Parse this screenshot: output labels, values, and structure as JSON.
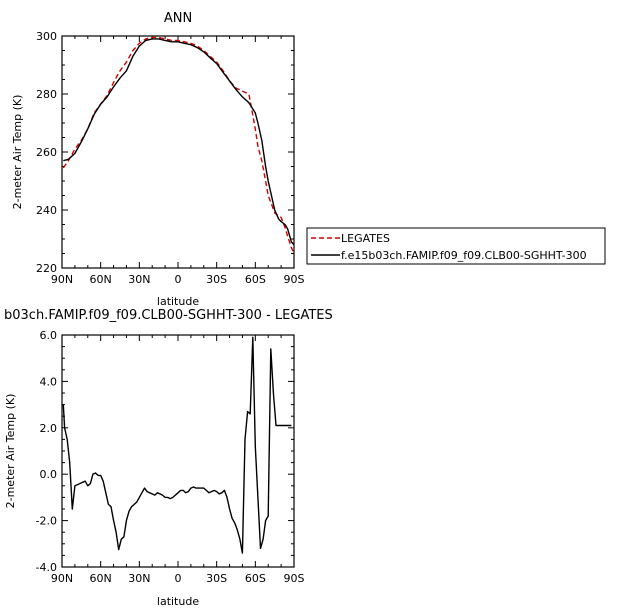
{
  "chart_data": [
    {
      "type": "line",
      "title": "ANN",
      "xlabel": "latitude",
      "ylabel": "2-meter Air Temp (K)",
      "x_ticks": [
        "90N",
        "60N",
        "30N",
        "0",
        "30S",
        "60S",
        "90S"
      ],
      "x_tick_values": [
        -90,
        -60,
        -30,
        0,
        30,
        60,
        90
      ],
      "y_ticks": [
        "220",
        "240",
        "260",
        "280",
        "300"
      ],
      "xlim": [
        -90,
        90
      ],
      "ylim": [
        220,
        300
      ],
      "legend_position": "right",
      "series": [
        {
          "name": "LEGATES",
          "color": "#d40000",
          "dash": true,
          "x": [
            -89,
            -85,
            -80,
            -75,
            -70,
            -65,
            -60,
            -55,
            -50,
            -45,
            -40,
            -35,
            -30,
            -25,
            -20,
            -15,
            -10,
            -5,
            0,
            5,
            10,
            15,
            20,
            25,
            30,
            35,
            40,
            45,
            50,
            55,
            60,
            62,
            65,
            68,
            70,
            73,
            75,
            78,
            80,
            83,
            85,
            88,
            90
          ],
          "y": [
            254.5,
            257,
            261,
            264,
            268,
            273.5,
            276.5,
            279.5,
            284,
            288,
            291,
            295,
            297.5,
            299,
            299.5,
            299.5,
            299,
            298.5,
            298.5,
            298,
            297.5,
            296.5,
            295,
            293,
            291,
            288,
            284.5,
            282,
            281,
            280,
            268,
            262,
            257,
            250,
            245,
            241.5,
            239,
            238,
            237.5,
            234,
            231,
            227,
            225
          ]
        },
        {
          "name": "f.e15b03ch.FAMIP.f09_f09.CLB00-SGHHT-300",
          "color": "#000000",
          "dash": false,
          "x": [
            -89,
            -85,
            -80,
            -75,
            -70,
            -65,
            -60,
            -55,
            -50,
            -45,
            -40,
            -35,
            -30,
            -25,
            -20,
            -15,
            -10,
            -5,
            0,
            5,
            10,
            15,
            20,
            25,
            30,
            35,
            40,
            45,
            50,
            55,
            60,
            62,
            65,
            68,
            70,
            73,
            75,
            78,
            80,
            83,
            85,
            88,
            90
          ],
          "y": [
            257,
            257.5,
            259.5,
            263.5,
            268,
            273,
            276.5,
            279,
            282.5,
            285.5,
            288,
            293,
            296.5,
            298.5,
            299,
            299,
            298.5,
            298,
            298,
            297.5,
            297,
            296,
            294.5,
            292.5,
            290.5,
            287.5,
            284.5,
            281.5,
            279,
            277,
            273.5,
            270,
            264,
            255,
            250,
            244,
            240,
            237,
            236,
            235,
            233.5,
            229,
            228
          ]
        }
      ]
    },
    {
      "type": "line",
      "title": "b03ch.FAMIP.f09_f09.CLB00-SGHHT-300 - LEGATES",
      "xlabel": "latitude",
      "ylabel": "2-meter Air Temp (K)",
      "x_ticks": [
        "90N",
        "60N",
        "30N",
        "0",
        "30S",
        "60S",
        "90S"
      ],
      "x_tick_values": [
        -90,
        -60,
        -30,
        0,
        30,
        60,
        90
      ],
      "y_ticks": [
        "6.0",
        "4.0",
        "2.0",
        "0.0",
        "-2.0",
        "-4.0"
      ],
      "y_tick_values": [
        6,
        4,
        2,
        0,
        -2,
        -4
      ],
      "xlim": [
        -90,
        90
      ],
      "ylim": [
        -4,
        6
      ],
      "series": [
        {
          "color": "#000000",
          "x": [
            -89,
            -88,
            -86,
            -84,
            -82,
            -80,
            -78,
            -76,
            -74,
            -72,
            -70,
            -68,
            -66,
            -64,
            -62,
            -60,
            -58,
            -56,
            -54,
            -52,
            -50,
            -48,
            -46,
            -44,
            -42,
            -40,
            -38,
            -36,
            -34,
            -32,
            -30,
            -28,
            -26,
            -24,
            -22,
            -20,
            -18,
            -16,
            -14,
            -12,
            -10,
            -8,
            -6,
            -4,
            -2,
            0,
            2,
            4,
            6,
            8,
            10,
            12,
            14,
            16,
            18,
            20,
            22,
            24,
            26,
            28,
            30,
            32,
            34,
            36,
            38,
            40,
            42,
            44,
            46,
            48,
            50,
            52,
            54,
            56,
            58,
            60,
            62,
            64,
            66,
            68,
            70,
            72,
            74,
            76,
            78,
            80,
            82,
            84,
            86,
            88
          ],
          "y": [
            3.0,
            2.0,
            1.5,
            0.5,
            -1.5,
            -0.5,
            -0.45,
            -0.4,
            -0.35,
            -0.3,
            -0.5,
            -0.4,
            0.0,
            0.05,
            -0.05,
            -0.05,
            -0.3,
            -0.8,
            -1.3,
            -1.4,
            -2.0,
            -2.5,
            -3.25,
            -2.8,
            -2.7,
            -2.0,
            -1.6,
            -1.4,
            -1.3,
            -1.2,
            -1.0,
            -0.8,
            -0.6,
            -0.75,
            -0.8,
            -0.85,
            -0.9,
            -0.8,
            -0.85,
            -0.9,
            -1.0,
            -1.0,
            -1.05,
            -1.0,
            -0.9,
            -0.8,
            -0.7,
            -0.7,
            -0.8,
            -0.75,
            -0.6,
            -0.55,
            -0.6,
            -0.6,
            -0.6,
            -0.6,
            -0.7,
            -0.8,
            -0.75,
            -0.7,
            -0.75,
            -0.85,
            -0.8,
            -0.7,
            -1.0,
            -1.5,
            -1.9,
            -2.1,
            -2.4,
            -2.8,
            -3.4,
            1.5,
            2.7,
            2.6,
            5.9,
            1.2,
            -1.0,
            -3.2,
            -2.8,
            -2.0,
            -1.8,
            5.4,
            3.5,
            2.1,
            2.1,
            2.1,
            2.1,
            2.1,
            2.1,
            2.1
          ]
        }
      ]
    }
  ],
  "legend_entries": [
    "LEGATES",
    "f.e15b03ch.FAMIP.f09_f09.CLB00-SGHHT-300"
  ]
}
